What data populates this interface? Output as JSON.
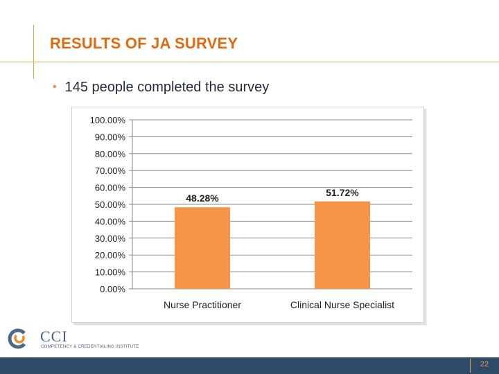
{
  "slide": {
    "title": "RESULTS OF JA SURVEY",
    "bullet": "145 people completed the survey",
    "page_number": "22"
  },
  "logo": {
    "name": "CCI",
    "tagline": "COMPETENCY & CREDENTIALING INSTITUTE"
  },
  "colors": {
    "accent": "#e06a12",
    "bar": "#f4954a",
    "footer": "#2f4a66"
  },
  "chart_data": {
    "type": "bar",
    "categories": [
      "Nurse Practitioner",
      "Clinical Nurse Specialist"
    ],
    "values": [
      48.28,
      51.72
    ],
    "data_labels": [
      "48.28%",
      "51.72%"
    ],
    "ylim": [
      0,
      100
    ],
    "yticks": [
      0,
      10,
      20,
      30,
      40,
      50,
      60,
      70,
      80,
      90,
      100
    ],
    "ytick_labels": [
      "0.00%",
      "10.00%",
      "20.00%",
      "30.00%",
      "40.00%",
      "50.00%",
      "60.00%",
      "70.00%",
      "80.00%",
      "90.00%",
      "100.00%"
    ],
    "grid": true,
    "legend": "none"
  }
}
